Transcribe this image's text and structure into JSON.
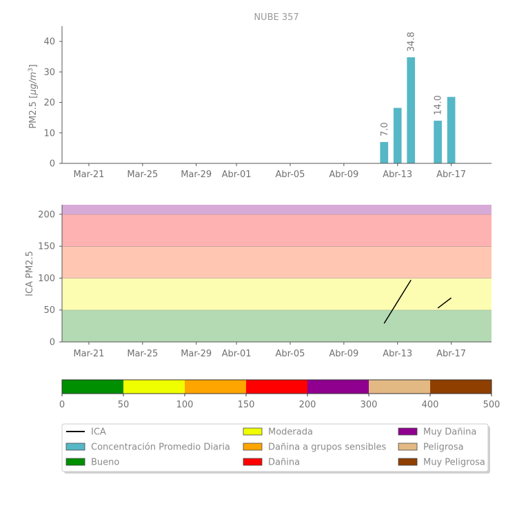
{
  "chart_data": [
    {
      "type": "bar",
      "title": "NUBE 357",
      "ylabel": "PM2.5 [μg/m³]",
      "ylabel_main": "PM2.5 [",
      "ylabel_unit": "μg/m",
      "ylabel_sup": "3",
      "ylabel_close": "]",
      "xlim": [
        "2025-03-19",
        "2025-04-20"
      ],
      "ylim": [
        0,
        45
      ],
      "yticks": [
        0,
        10,
        20,
        30,
        40
      ],
      "xticks": [
        {
          "date": "2025-03-21",
          "label": "Mar-21"
        },
        {
          "date": "2025-03-25",
          "label": "Mar-25"
        },
        {
          "date": "2025-03-29",
          "label": "Mar-29"
        },
        {
          "date": "2025-04-01",
          "label": "Abr-01"
        },
        {
          "date": "2025-04-05",
          "label": "Abr-05"
        },
        {
          "date": "2025-04-09",
          "label": "Abr-09"
        },
        {
          "date": "2025-04-13",
          "label": "Abr-13"
        },
        {
          "date": "2025-04-17",
          "label": "Abr-17"
        }
      ],
      "bar_color": "#56b7c6",
      "bars": [
        {
          "date": "2025-04-12",
          "value": 7.0,
          "label": "7.0"
        },
        {
          "date": "2025-04-13",
          "value": 18.2,
          "label": ""
        },
        {
          "date": "2025-04-14",
          "value": 34.8,
          "label": "34.8"
        },
        {
          "date": "2025-04-16",
          "value": 14.0,
          "label": "14.0"
        },
        {
          "date": "2025-04-17",
          "value": 21.8,
          "label": ""
        }
      ]
    },
    {
      "type": "line",
      "ylabel": "ICA PM2.5",
      "xlim": [
        "2025-03-19",
        "2025-04-20"
      ],
      "ylim": [
        0,
        215
      ],
      "yticks": [
        0,
        50,
        100,
        150,
        200
      ],
      "xticks": [
        {
          "date": "2025-03-21",
          "label": "Mar-21"
        },
        {
          "date": "2025-03-25",
          "label": "Mar-25"
        },
        {
          "date": "2025-03-29",
          "label": "Mar-29"
        },
        {
          "date": "2025-04-01",
          "label": "Abr-01"
        },
        {
          "date": "2025-04-05",
          "label": "Abr-05"
        },
        {
          "date": "2025-04-09",
          "label": "Abr-09"
        },
        {
          "date": "2025-04-13",
          "label": "Abr-13"
        },
        {
          "date": "2025-04-17",
          "label": "Abr-17"
        }
      ],
      "bands": [
        {
          "from": 0,
          "to": 50,
          "color": "#b3dab3"
        },
        {
          "from": 50,
          "to": 100,
          "color": "#fdfdb2"
        },
        {
          "from": 100,
          "to": 150,
          "color": "#ffc7b2"
        },
        {
          "from": 150,
          "to": 200,
          "color": "#ffb2b2"
        },
        {
          "from": 200,
          "to": 215,
          "color": "#d8aad8"
        }
      ],
      "series": [
        {
          "segments": [
            [
              [
                "2025-04-12",
                29
              ],
              [
                "2025-04-13",
                63
              ],
              [
                "2025-04-14",
                97
              ]
            ],
            [
              [
                "2025-04-16",
                53
              ],
              [
                "2025-04-17",
                69
              ]
            ]
          ],
          "color": "#000000"
        }
      ]
    },
    {
      "type": "colorbar",
      "ticks": [
        {
          "value": 0,
          "label": "0"
        },
        {
          "value": 50,
          "label": "50"
        },
        {
          "value": 100,
          "label": "100"
        },
        {
          "value": 150,
          "label": "150"
        },
        {
          "value": 200,
          "label": "200"
        },
        {
          "value": 300,
          "label": "300"
        },
        {
          "value": 400,
          "label": "400"
        },
        {
          "value": 500,
          "label": "500"
        }
      ],
      "segments": [
        {
          "color": "#008f00"
        },
        {
          "color": "#f0ff00"
        },
        {
          "color": "#ffa500"
        },
        {
          "color": "#ff0000"
        },
        {
          "color": "#8f008f"
        },
        {
          "color": "#e3b983"
        },
        {
          "color": "#8f3f00"
        }
      ]
    }
  ],
  "legend": {
    "placement": "bottom",
    "items": [
      {
        "label": "ICA",
        "kind": "line",
        "color": "#000000"
      },
      {
        "label": "Concentración Promedio Diaria",
        "kind": "patch",
        "color": "#56b7c6"
      },
      {
        "label": "Bueno",
        "kind": "patch",
        "color": "#008f00"
      },
      {
        "label": "Moderada",
        "kind": "patch",
        "color": "#f0ff00"
      },
      {
        "label": "Dañina a grupos sensibles",
        "kind": "patch",
        "color": "#ffa500"
      },
      {
        "label": "Dañina",
        "kind": "patch",
        "color": "#ff0000"
      },
      {
        "label": "Muy Dañina",
        "kind": "patch",
        "color": "#8f008f"
      },
      {
        "label": "Peligrosa",
        "kind": "patch",
        "color": "#e3b983"
      },
      {
        "label": "Muy Peligrosa",
        "kind": "patch",
        "color": "#8f3f00"
      }
    ]
  }
}
